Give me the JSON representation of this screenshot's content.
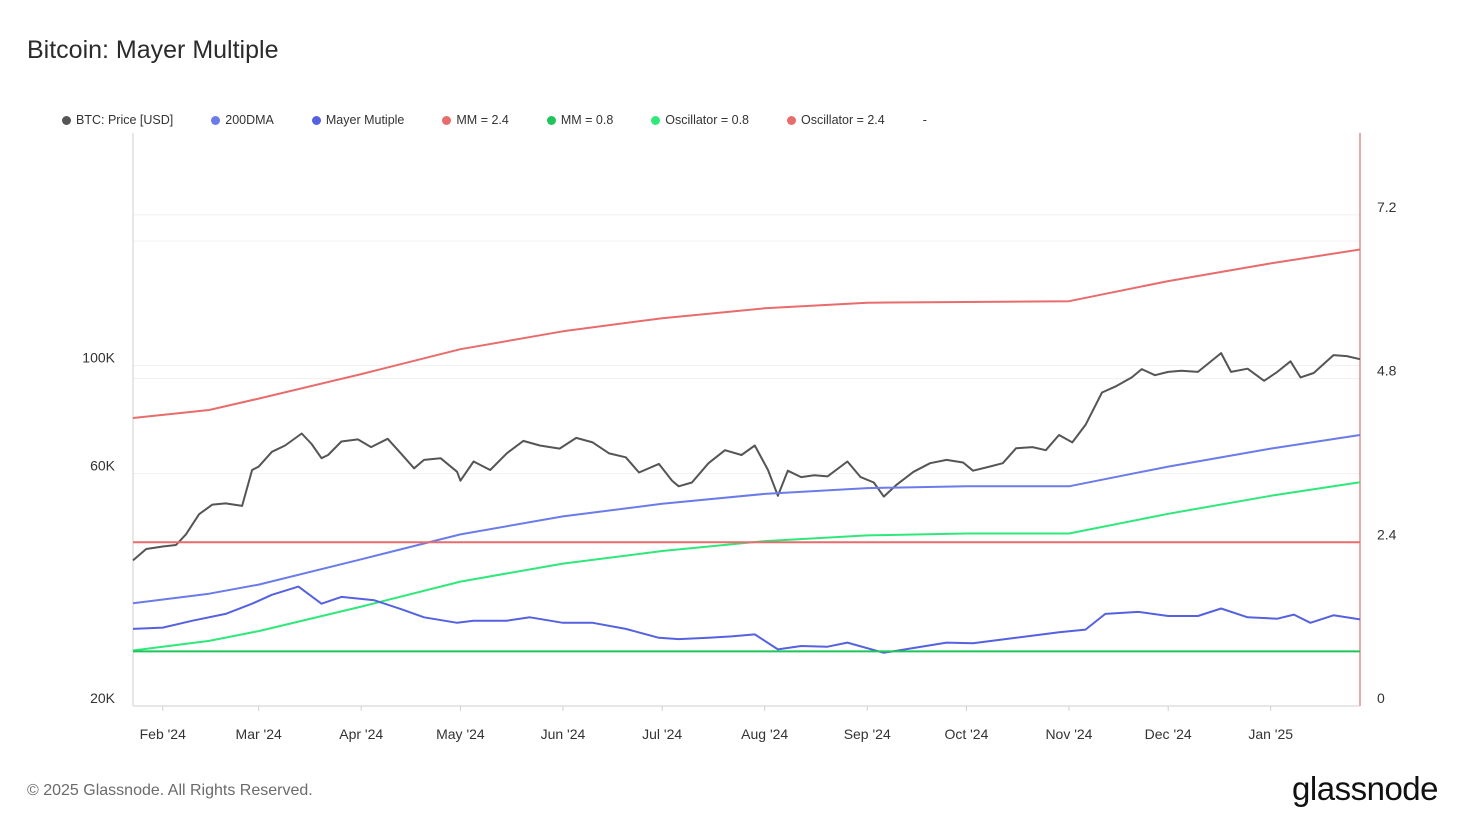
{
  "header": {
    "title": "Bitcoin: Mayer Multiple"
  },
  "footer": {
    "copyright": "© 2025 Glassnode. All Rights Reserved.",
    "brand": "glassnode"
  },
  "legend": [
    {
      "label": "BTC: Price [USD]",
      "color": "#555555"
    },
    {
      "label": "200DMA",
      "color": "#6b7bea"
    },
    {
      "label": "Mayer Mutiple",
      "color": "#5561e0"
    },
    {
      "label": "MM = 2.4",
      "color": "#e86c6c"
    },
    {
      "label": "MM = 0.8",
      "color": "#1fc45a"
    },
    {
      "label": "Oscillator = 0.8",
      "color": "#2ee87a"
    },
    {
      "label": "Oscillator = 2.4",
      "color": "#e86c6c"
    },
    {
      "label": "-",
      "color": ""
    }
  ],
  "chart_data": {
    "type": "line",
    "x_ticks": [
      "Feb '24",
      "Mar '24",
      "Apr '24",
      "May '24",
      "Jun '24",
      "Jul '24",
      "Aug '24",
      "Sep '24",
      "Oct '24",
      "Nov '24",
      "Dec '24",
      "Jan '25"
    ],
    "x_tick_dates": [
      "2024-02-01",
      "2024-03-01",
      "2024-04-01",
      "2024-05-01",
      "2024-06-01",
      "2024-07-01",
      "2024-08-01",
      "2024-09-01",
      "2024-10-01",
      "2024-11-01",
      "2024-12-01",
      "2025-01-01"
    ],
    "x_range": [
      "2024-01-23",
      "2025-01-28"
    ],
    "y_left": {
      "scale": "log",
      "ticks": [
        20000,
        60000,
        100000
      ],
      "tick_labels": [
        "20K",
        "60K",
        "100K"
      ],
      "range": [
        20000,
        300000
      ]
    },
    "y_right": {
      "scale": "linear",
      "ticks": [
        0,
        2.4,
        4.8,
        7.2
      ],
      "tick_labels": [
        "0",
        "2.4",
        "4.8",
        "7.2"
      ],
      "range": [
        0,
        8.4
      ]
    },
    "grid": "horizontal",
    "legend_position": "top-left",
    "series": [
      {
        "name": "BTC: Price [USD]",
        "axis": "left",
        "color": "#555555",
        "points": [
          [
            "2024-01-23",
            39800
          ],
          [
            "2024-01-27",
            42000
          ],
          [
            "2024-02-01",
            42500
          ],
          [
            "2024-02-05",
            42800
          ],
          [
            "2024-02-08",
            45000
          ],
          [
            "2024-02-12",
            49500
          ],
          [
            "2024-02-16",
            51800
          ],
          [
            "2024-02-20",
            52100
          ],
          [
            "2024-02-25",
            51500
          ],
          [
            "2024-02-28",
            61000
          ],
          [
            "2024-03-01",
            62000
          ],
          [
            "2024-03-05",
            66500
          ],
          [
            "2024-03-09",
            68500
          ],
          [
            "2024-03-14",
            72500
          ],
          [
            "2024-03-17",
            69000
          ],
          [
            "2024-03-20",
            64500
          ],
          [
            "2024-03-22",
            65500
          ],
          [
            "2024-03-26",
            69800
          ],
          [
            "2024-03-31",
            70500
          ],
          [
            "2024-04-04",
            68000
          ],
          [
            "2024-04-09",
            70700
          ],
          [
            "2024-04-13",
            66000
          ],
          [
            "2024-04-17",
            61500
          ],
          [
            "2024-04-20",
            64000
          ],
          [
            "2024-04-25",
            64500
          ],
          [
            "2024-04-30",
            60500
          ],
          [
            "2024-05-01",
            58000
          ],
          [
            "2024-05-05",
            63500
          ],
          [
            "2024-05-10",
            61000
          ],
          [
            "2024-05-15",
            66000
          ],
          [
            "2024-05-20",
            70000
          ],
          [
            "2024-05-25",
            68500
          ],
          [
            "2024-05-31",
            67500
          ],
          [
            "2024-06-05",
            71000
          ],
          [
            "2024-06-10",
            69500
          ],
          [
            "2024-06-15",
            66000
          ],
          [
            "2024-06-20",
            64800
          ],
          [
            "2024-06-24",
            60300
          ],
          [
            "2024-06-30",
            62800
          ],
          [
            "2024-07-04",
            58000
          ],
          [
            "2024-07-06",
            56500
          ],
          [
            "2024-07-10",
            57500
          ],
          [
            "2024-07-15",
            63000
          ],
          [
            "2024-07-20",
            67000
          ],
          [
            "2024-07-25",
            65500
          ],
          [
            "2024-07-29",
            68500
          ],
          [
            "2024-08-02",
            61000
          ],
          [
            "2024-08-05",
            54000
          ],
          [
            "2024-08-08",
            60800
          ],
          [
            "2024-08-12",
            59000
          ],
          [
            "2024-08-16",
            59500
          ],
          [
            "2024-08-20",
            59200
          ],
          [
            "2024-08-26",
            63500
          ],
          [
            "2024-08-30",
            59000
          ],
          [
            "2024-09-03",
            57500
          ],
          [
            "2024-09-06",
            53800
          ],
          [
            "2024-09-10",
            57000
          ],
          [
            "2024-09-15",
            60500
          ],
          [
            "2024-09-20",
            63000
          ],
          [
            "2024-09-25",
            64000
          ],
          [
            "2024-09-30",
            63200
          ],
          [
            "2024-10-03",
            60800
          ],
          [
            "2024-10-08",
            62000
          ],
          [
            "2024-10-12",
            63000
          ],
          [
            "2024-10-16",
            67600
          ],
          [
            "2024-10-21",
            68000
          ],
          [
            "2024-10-25",
            67000
          ],
          [
            "2024-10-29",
            72000
          ],
          [
            "2024-11-02",
            69500
          ],
          [
            "2024-11-06",
            75500
          ],
          [
            "2024-11-11",
            88000
          ],
          [
            "2024-11-15",
            90500
          ],
          [
            "2024-11-20",
            94500
          ],
          [
            "2024-11-23",
            98300
          ],
          [
            "2024-11-27",
            95500
          ],
          [
            "2024-12-01",
            97000
          ],
          [
            "2024-12-05",
            97500
          ],
          [
            "2024-12-10",
            97000
          ],
          [
            "2024-12-17",
            106000
          ],
          [
            "2024-12-20",
            97000
          ],
          [
            "2024-12-25",
            98500
          ],
          [
            "2024-12-30",
            93000
          ],
          [
            "2025-01-03",
            97000
          ],
          [
            "2025-01-07",
            102000
          ],
          [
            "2025-01-10",
            94500
          ],
          [
            "2025-01-14",
            96500
          ],
          [
            "2025-01-20",
            105000
          ],
          [
            "2025-01-24",
            104500
          ],
          [
            "2025-01-28",
            103000
          ]
        ]
      },
      {
        "name": "200DMA",
        "axis": "left",
        "color": "#6b7bea",
        "points": [
          [
            "2024-01-23",
            32500
          ],
          [
            "2024-02-15",
            34000
          ],
          [
            "2024-03-01",
            35500
          ],
          [
            "2024-04-01",
            40000
          ],
          [
            "2024-05-01",
            45000
          ],
          [
            "2024-06-01",
            49000
          ],
          [
            "2024-07-01",
            52000
          ],
          [
            "2024-08-01",
            54500
          ],
          [
            "2024-09-01",
            56000
          ],
          [
            "2024-10-01",
            56500
          ],
          [
            "2024-11-01",
            56500
          ],
          [
            "2024-12-01",
            62000
          ],
          [
            "2025-01-01",
            67500
          ],
          [
            "2025-01-28",
            72000
          ]
        ]
      },
      {
        "name": "Oscillator = 2.4",
        "axis": "left",
        "color": "#e86c6c",
        "points": [
          [
            "2024-01-23",
            78000
          ],
          [
            "2024-02-15",
            81000
          ],
          [
            "2024-03-01",
            85500
          ],
          [
            "2024-04-01",
            96000
          ],
          [
            "2024-05-01",
            108000
          ],
          [
            "2024-06-01",
            117500
          ],
          [
            "2024-07-01",
            125000
          ],
          [
            "2024-08-01",
            131000
          ],
          [
            "2024-09-01",
            134500
          ],
          [
            "2024-10-01",
            135000
          ],
          [
            "2024-11-01",
            135500
          ],
          [
            "2024-12-01",
            149000
          ],
          [
            "2025-01-01",
            162000
          ],
          [
            "2025-01-28",
            173000
          ]
        ]
      },
      {
        "name": "Oscillator = 0.8",
        "axis": "left",
        "color": "#2ee87a",
        "points": [
          [
            "2024-01-23",
            26000
          ],
          [
            "2024-02-15",
            27200
          ],
          [
            "2024-03-01",
            28500
          ],
          [
            "2024-04-01",
            32000
          ],
          [
            "2024-05-01",
            36000
          ],
          [
            "2024-06-01",
            39200
          ],
          [
            "2024-07-01",
            41600
          ],
          [
            "2024-08-01",
            43600
          ],
          [
            "2024-09-01",
            44800
          ],
          [
            "2024-10-01",
            45200
          ],
          [
            "2024-11-01",
            45200
          ],
          [
            "2024-12-01",
            49600
          ],
          [
            "2025-01-01",
            54000
          ],
          [
            "2025-01-28",
            57600
          ]
        ]
      },
      {
        "name": "Mayer Mutiple",
        "axis": "right",
        "color": "#5561e0",
        "points": [
          [
            "2024-01-23",
            1.13
          ],
          [
            "2024-02-01",
            1.15
          ],
          [
            "2024-02-10",
            1.25
          ],
          [
            "2024-02-20",
            1.35
          ],
          [
            "2024-02-28",
            1.5
          ],
          [
            "2024-03-05",
            1.63
          ],
          [
            "2024-03-13",
            1.75
          ],
          [
            "2024-03-20",
            1.5
          ],
          [
            "2024-03-26",
            1.6
          ],
          [
            "2024-04-05",
            1.55
          ],
          [
            "2024-04-13",
            1.42
          ],
          [
            "2024-04-20",
            1.3
          ],
          [
            "2024-04-30",
            1.22
          ],
          [
            "2024-05-05",
            1.25
          ],
          [
            "2024-05-15",
            1.25
          ],
          [
            "2024-05-22",
            1.3
          ],
          [
            "2024-06-01",
            1.22
          ],
          [
            "2024-06-10",
            1.22
          ],
          [
            "2024-06-20",
            1.13
          ],
          [
            "2024-06-30",
            1.0
          ],
          [
            "2024-07-06",
            0.98
          ],
          [
            "2024-07-15",
            1.0
          ],
          [
            "2024-07-22",
            1.02
          ],
          [
            "2024-07-29",
            1.05
          ],
          [
            "2024-08-05",
            0.83
          ],
          [
            "2024-08-12",
            0.88
          ],
          [
            "2024-08-20",
            0.87
          ],
          [
            "2024-08-26",
            0.93
          ],
          [
            "2024-09-06",
            0.78
          ],
          [
            "2024-09-15",
            0.85
          ],
          [
            "2024-09-25",
            0.93
          ],
          [
            "2024-10-03",
            0.92
          ],
          [
            "2024-10-16",
            1.0
          ],
          [
            "2024-10-29",
            1.08
          ],
          [
            "2024-11-06",
            1.12
          ],
          [
            "2024-11-12",
            1.35
          ],
          [
            "2024-11-22",
            1.38
          ],
          [
            "2024-12-01",
            1.32
          ],
          [
            "2024-12-10",
            1.32
          ],
          [
            "2024-12-17",
            1.43
          ],
          [
            "2024-12-25",
            1.3
          ],
          [
            "2025-01-03",
            1.28
          ],
          [
            "2025-01-08",
            1.34
          ],
          [
            "2025-01-13",
            1.22
          ],
          [
            "2025-01-20",
            1.33
          ],
          [
            "2025-01-28",
            1.27
          ]
        ]
      },
      {
        "name": "MM = 2.4",
        "axis": "right",
        "color": "#e86c6c",
        "points": [
          [
            "2024-01-23",
            2.4
          ],
          [
            "2025-01-28",
            2.4
          ]
        ]
      },
      {
        "name": "MM = 0.8",
        "axis": "right",
        "color": "#1fc45a",
        "points": [
          [
            "2024-01-23",
            0.8
          ],
          [
            "2025-01-28",
            0.8
          ]
        ]
      }
    ]
  }
}
